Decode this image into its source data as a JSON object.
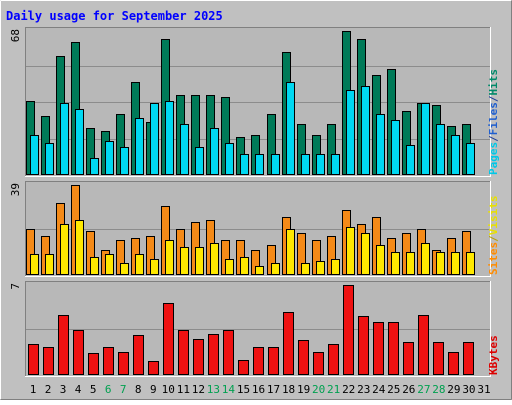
{
  "chart_data": {
    "type": "bar",
    "title": "Daily usage for September 2025",
    "categories": [
      "1",
      "2",
      "3",
      "4",
      "5",
      "6",
      "7",
      "8",
      "9",
      "10",
      "11",
      "12",
      "13",
      "14",
      "15",
      "16",
      "17",
      "18",
      "19",
      "20",
      "21",
      "22",
      "23",
      "24",
      "25",
      "26",
      "27",
      "28",
      "29",
      "30",
      "31"
    ],
    "weekend_days": [
      "6",
      "7",
      "13",
      "14",
      "20",
      "21",
      "27",
      "28"
    ],
    "panels": [
      {
        "id": "hits-files-pages",
        "ymax_label": "68",
        "ymax": 68,
        "legend": [
          {
            "text": "Pages",
            "color": "#00c8e8"
          },
          {
            "text": "/",
            "color": "#1f3f99"
          },
          {
            "text": "Files",
            "color": "#1f5fd0"
          },
          {
            "text": "/",
            "color": "#1f3f99"
          },
          {
            "text": "Hits",
            "color": "#008a6a"
          }
        ],
        "series": [
          {
            "name": "Hits",
            "color": "#007a58",
            "values": [
              35,
              28,
              56,
              63,
              22,
              21,
              29,
              44,
              25,
              64,
              38,
              38,
              38,
              37,
              18,
              19,
              29,
              58,
              24,
              19,
              24,
              68,
              64,
              47,
              50,
              30,
              34,
              33,
              23,
              24,
              null
            ]
          },
          {
            "name": "Pages",
            "color": "#00d8f2",
            "values": [
              19,
              15,
              34,
              31,
              8,
              16,
              13,
              27,
              34,
              35,
              24,
              13,
              22,
              15,
              10,
              10,
              10,
              44,
              10,
              10,
              10,
              40,
              42,
              29,
              26,
              14,
              34,
              24,
              19,
              15,
              null
            ]
          }
        ]
      },
      {
        "id": "visits-sites",
        "ymax_label": "39",
        "ymax": 39,
        "legend": [
          {
            "text": "Sites",
            "color": "#ff8c00"
          },
          {
            "text": "/",
            "color": "#b8a000"
          },
          {
            "text": "Visits",
            "color": "#e8e000"
          }
        ],
        "series": [
          {
            "name": "Sites",
            "color": "#f48a18",
            "values": [
              20,
              17,
              31,
              39,
              19,
              11,
              15,
              16,
              17,
              30,
              20,
              23,
              24,
              15,
              15,
              11,
              13,
              25,
              18,
              15,
              17,
              28,
              22,
              25,
              16,
              18,
              20,
              11,
              16,
              19,
              null
            ]
          },
          {
            "name": "Visits",
            "color": "#ffe800",
            "values": [
              9,
              9,
              22,
              24,
              8,
              9,
              5,
              9,
              7,
              15,
              12,
              12,
              14,
              7,
              8,
              4,
              5,
              20,
              5,
              6,
              7,
              21,
              18,
              13,
              10,
              10,
              14,
              10,
              10,
              10,
              null
            ]
          }
        ]
      },
      {
        "id": "kbytes",
        "ymax_label": "7",
        "ymax": 7,
        "legend": [
          {
            "text": "KBytes",
            "color": "#dd0000"
          }
        ],
        "series": [
          {
            "name": "KBytes",
            "color": "#ee1111",
            "values": [
              2.4,
              2.2,
              4.7,
              3.5,
              1.7,
              2.2,
              1.8,
              3.1,
              1.1,
              5.6,
              3.5,
              2.8,
              3.2,
              3.5,
              1.2,
              2.2,
              2.2,
              4.9,
              2.7,
              1.8,
              2.4,
              7.0,
              4.6,
              4.1,
              4.1,
              2.6,
              4.7,
              2.6,
              1.8,
              2.6,
              null
            ]
          }
        ]
      }
    ]
  }
}
